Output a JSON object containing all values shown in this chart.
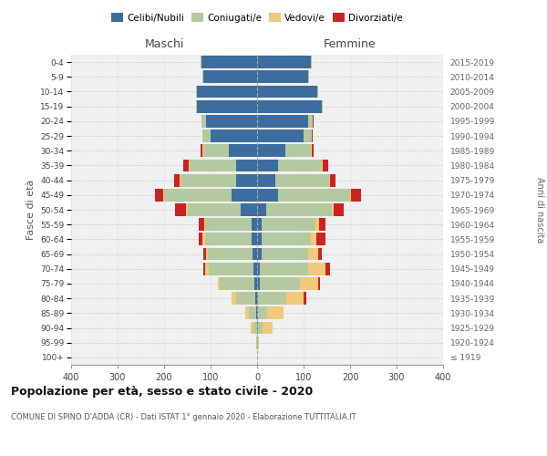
{
  "age_groups": [
    "100+",
    "95-99",
    "90-94",
    "85-89",
    "80-84",
    "75-79",
    "70-74",
    "65-69",
    "60-64",
    "55-59",
    "50-54",
    "45-49",
    "40-44",
    "35-39",
    "30-34",
    "25-29",
    "20-24",
    "15-19",
    "10-14",
    "5-9",
    "0-4"
  ],
  "birth_years": [
    "≤ 1919",
    "1920-1924",
    "1925-1929",
    "1930-1934",
    "1935-1939",
    "1940-1944",
    "1945-1949",
    "1950-1954",
    "1955-1959",
    "1960-1964",
    "1965-1969",
    "1970-1974",
    "1975-1979",
    "1980-1984",
    "1985-1989",
    "1990-1994",
    "1995-1999",
    "2000-2004",
    "2005-2009",
    "2010-2014",
    "2015-2019"
  ],
  "colors": {
    "celibi": "#3d6d9e",
    "coniugati": "#b5c9a0",
    "vedovi": "#f0c97a",
    "divorziati": "#cc2222"
  },
  "males": {
    "celibi": [
      0,
      0,
      0,
      2,
      3,
      5,
      8,
      10,
      12,
      12,
      35,
      55,
      45,
      45,
      60,
      100,
      110,
      130,
      130,
      115,
      120
    ],
    "coniugati": [
      0,
      2,
      8,
      15,
      42,
      75,
      95,
      95,
      100,
      100,
      115,
      145,
      120,
      100,
      55,
      18,
      10,
      2,
      2,
      2,
      2
    ],
    "vedovi": [
      0,
      0,
      5,
      8,
      10,
      5,
      8,
      5,
      5,
      2,
      2,
      2,
      2,
      2,
      2,
      0,
      0,
      0,
      0,
      0,
      0
    ],
    "divorziati": [
      0,
      0,
      0,
      0,
      0,
      0,
      5,
      5,
      8,
      12,
      25,
      18,
      12,
      12,
      5,
      0,
      0,
      0,
      0,
      0,
      0
    ]
  },
  "females": {
    "celibi": [
      0,
      0,
      2,
      2,
      2,
      5,
      5,
      10,
      10,
      10,
      20,
      45,
      40,
      45,
      60,
      100,
      110,
      140,
      130,
      110,
      115
    ],
    "coniugati": [
      0,
      2,
      10,
      20,
      60,
      88,
      105,
      100,
      105,
      115,
      140,
      155,
      115,
      95,
      55,
      18,
      10,
      2,
      2,
      2,
      2
    ],
    "vedovi": [
      0,
      2,
      22,
      35,
      38,
      38,
      38,
      22,
      12,
      8,
      5,
      2,
      2,
      2,
      2,
      0,
      0,
      0,
      0,
      0,
      0
    ],
    "divorziati": [
      0,
      0,
      0,
      0,
      5,
      5,
      8,
      8,
      20,
      15,
      22,
      22,
      12,
      10,
      5,
      2,
      2,
      0,
      0,
      0,
      0
    ]
  },
  "xlim": 400,
  "title": "Popolazione per età, sesso e stato civile - 2020",
  "subtitle": "COMUNE DI SPINO D'ADDA (CR) - Dati ISTAT 1° gennaio 2020 - Elaborazione TUTTITALIA.IT",
  "ylabel_left": "Fasce di età",
  "ylabel_right": "Anni di nascita",
  "xlabel_left": "Maschi",
  "xlabel_right": "Femmine",
  "bg_color": "#f0f0f0",
  "grid_color": "#cccccc",
  "bar_height": 0.85
}
